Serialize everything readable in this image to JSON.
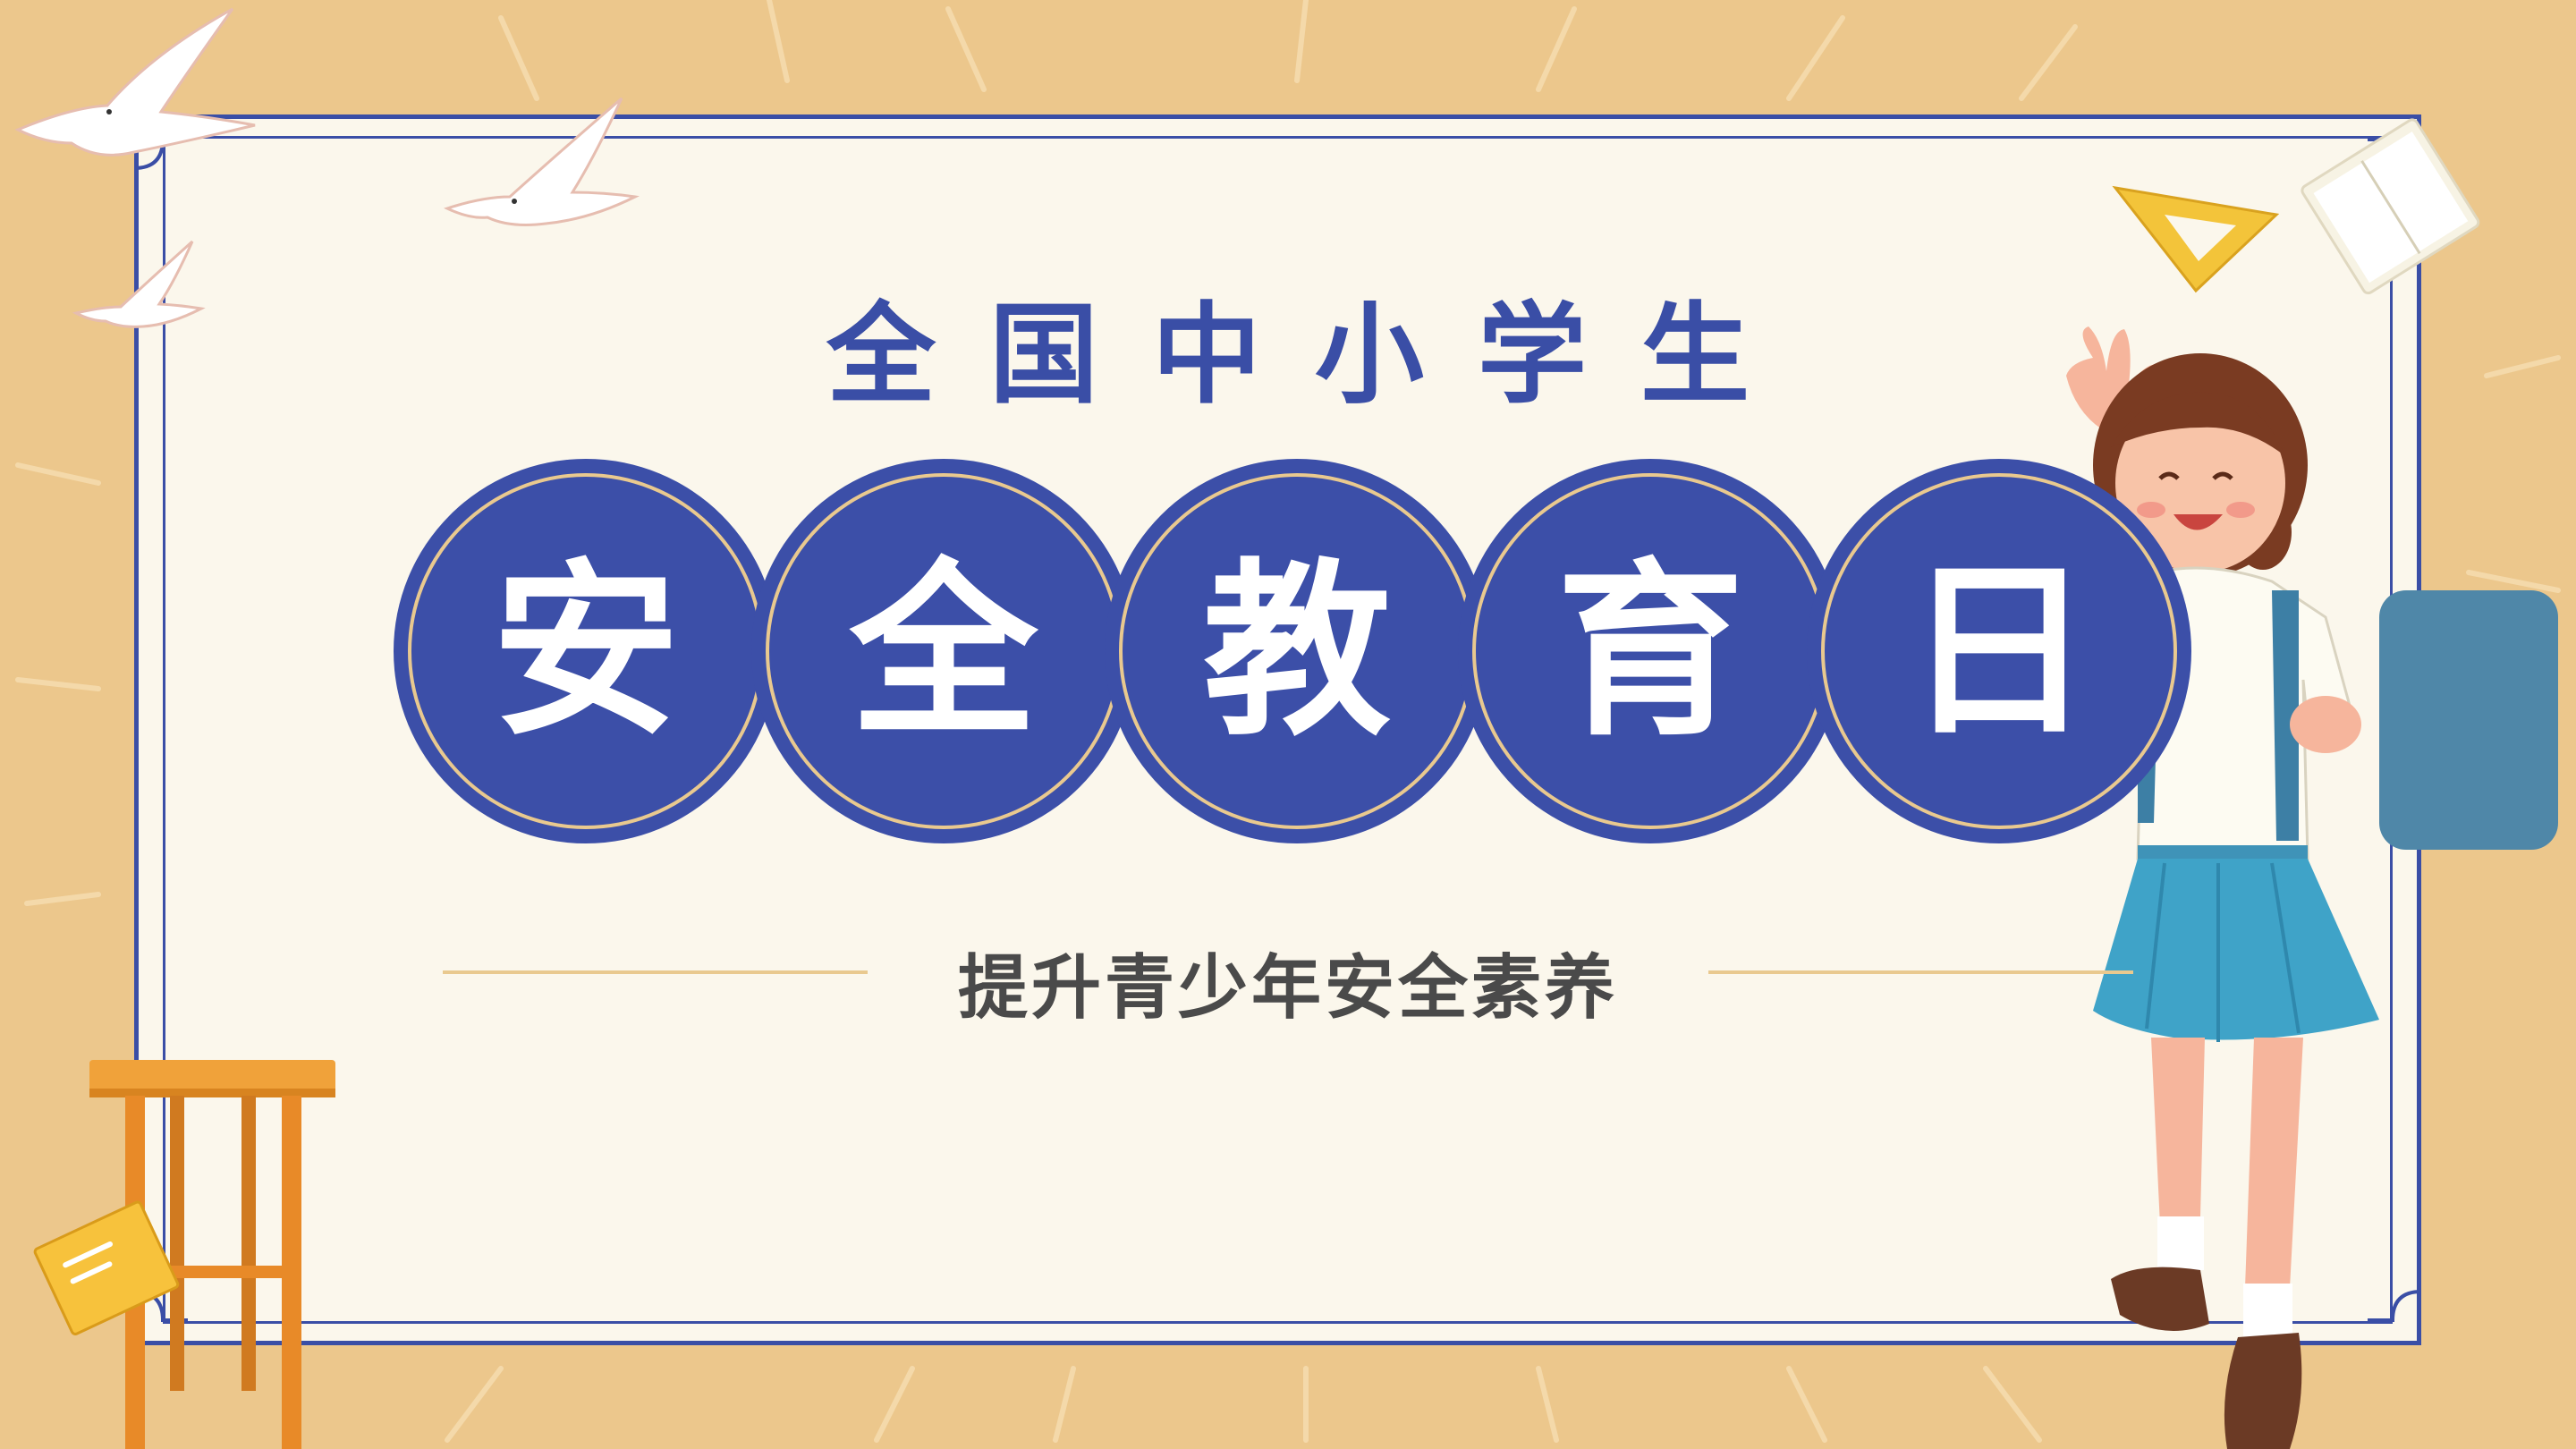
{
  "poster": {
    "subtitle": "全国中小学生",
    "title_chars": [
      "安",
      "全",
      "教",
      "育",
      "日"
    ],
    "tagline": "提升青少年安全素养"
  },
  "colors": {
    "background": "#ecc78c",
    "paper": "#fbf7ec",
    "primary_blue": "#3c4fa8",
    "ring_gold": "#e9c98f",
    "tagline_text": "#4a4a4a"
  },
  "decorations": [
    "dove-icon",
    "dove-icon",
    "dove-icon",
    "set-square-icon",
    "notebook-icon",
    "stool-icon",
    "book-icon",
    "student-girl-illustration"
  ]
}
